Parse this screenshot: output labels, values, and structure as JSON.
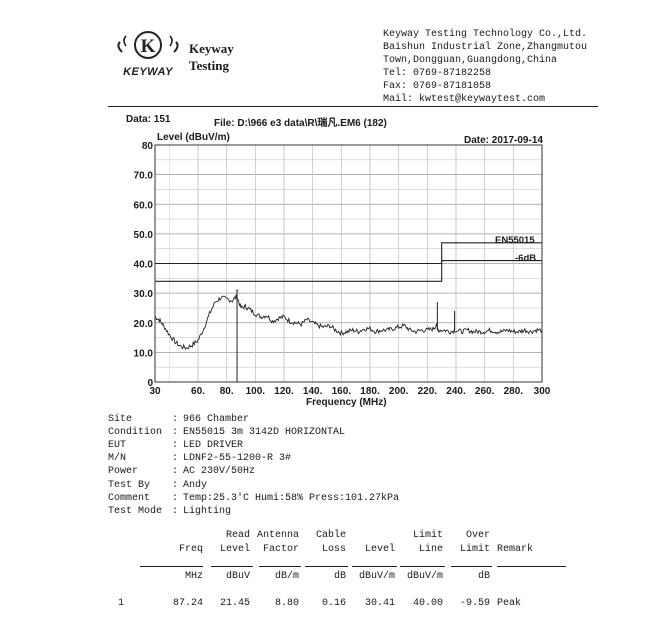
{
  "header": {
    "logo_mark": "K",
    "logo_word": "KEYWAY",
    "brand_line1": "Keyway",
    "brand_line2": "Testing",
    "company": "Keyway Testing Technology Co.,Ltd.",
    "address1": "Baishun Industrial Zone,Zhangmutou",
    "address2": "Town,Dongguan,Guangdong,China",
    "tel": "Tel: 0769-87182258",
    "fax": "Fax: 0769-87181058",
    "mail": "Mail: kwtest@keywaytest.com"
  },
  "plot_header": {
    "data": "Data: 151",
    "file": "File: D:\\966 e3 data\\R\\瑞凡.EM6  (182)",
    "date": "Date: 2017-09-14"
  },
  "chart_data": {
    "type": "line",
    "ylabel": "Level (dBuV/m)",
    "xlabel": "Frequency (MHz)",
    "xlim": [
      30,
      300
    ],
    "ylim": [
      0,
      80
    ],
    "x_ticks": [
      30,
      60,
      80,
      100,
      120,
      140,
      160,
      180,
      200,
      220,
      240,
      260,
      280,
      300
    ],
    "x_tick_labels": [
      "30",
      "60.",
      "80.",
      "100.",
      "120.",
      "140.",
      "160.",
      "180.",
      "200.",
      "220.",
      "240.",
      "260.",
      "280.",
      "300"
    ],
    "y_ticks": [
      0,
      10,
      20,
      30,
      40,
      50,
      60,
      70,
      80
    ],
    "y_tick_labels": [
      "0",
      "10.0",
      "20.0",
      "30.0",
      "40.0",
      "50.0",
      "60.0",
      "70.0",
      "80"
    ],
    "grid": true,
    "limit_line": {
      "label": "EN55015",
      "x": [
        30,
        230,
        230,
        300
      ],
      "y": [
        40,
        40,
        47,
        47
      ]
    },
    "margin_line": {
      "label": "-6dB",
      "x": [
        30,
        230,
        230,
        300
      ],
      "y": [
        34,
        34,
        41,
        41
      ]
    },
    "series": [
      {
        "x": [
          30,
          33,
          36,
          40,
          44,
          48,
          52,
          56,
          60,
          64,
          68,
          72,
          76,
          80,
          84,
          87,
          90,
          93,
          96,
          100,
          104,
          108,
          112,
          116,
          120,
          124,
          128,
          132,
          136,
          140,
          144,
          148,
          152,
          156,
          160,
          164,
          168,
          172,
          176,
          180,
          184,
          188,
          192,
          196,
          200,
          204,
          208,
          212,
          216,
          220,
          224,
          226,
          228,
          232,
          236,
          240,
          244,
          248,
          252,
          256,
          260,
          264,
          268,
          272,
          276,
          280,
          284,
          288,
          292,
          296,
          300
        ],
        "y": [
          22,
          21,
          19,
          16,
          13.5,
          12,
          11.5,
          12.5,
          14,
          18,
          23,
          27,
          28.5,
          28,
          27.5,
          29,
          25,
          25.5,
          24.5,
          23,
          22,
          22.5,
          20.5,
          21.5,
          22,
          20.5,
          20,
          19.5,
          21,
          20,
          19,
          18.5,
          19,
          17.5,
          16.5,
          17,
          17.5,
          17,
          18,
          18,
          17,
          17.5,
          17.5,
          18,
          18.5,
          19,
          17.5,
          17,
          17.5,
          17.5,
          18,
          19,
          17.5,
          17.5,
          17,
          17.5,
          17,
          17.5,
          17,
          17,
          17,
          17.5,
          17,
          17,
          17.5,
          17,
          17,
          17.5,
          17,
          17.5,
          17.5
        ]
      }
    ],
    "marker": {
      "x": 87.24,
      "y": 30.41
    },
    "spikes": [
      {
        "x": 227,
        "y": 27
      },
      {
        "x": 239,
        "y": 24
      }
    ]
  },
  "meta": [
    {
      "key": "Site",
      "sep": ":",
      "value": "966 Chamber"
    },
    {
      "key": "Condition",
      "sep": ":",
      "value": "EN55015 3m 3142D HORIZONTAL"
    },
    {
      "key": "EUT",
      "sep": ":",
      "value": "LED DRIVER"
    },
    {
      "key": "M/N",
      "sep": ":",
      "value": "LDNF2-55-1200-R     3#"
    },
    {
      "key": "Power",
      "sep": ":",
      "value": "AC  230V/50Hz"
    },
    {
      "key": "Test By",
      "sep": ":",
      "value": "Andy"
    },
    {
      "key": "Comment",
      "sep": ":",
      "value": "Temp:25.3'C    Humi:58%    Press:101.27kPa"
    },
    {
      "key": "Test Mode",
      "sep": ":",
      "value": "Lighting"
    }
  ],
  "table": {
    "headers_top": [
      "",
      "Read",
      "Antenna",
      "Cable",
      "",
      "Limit",
      "Over",
      ""
    ],
    "headers_mid": [
      "Freq",
      "Level",
      "Factor",
      "Loss",
      "Level",
      "Line",
      "Limit",
      "Remark"
    ],
    "units": [
      "MHz",
      "dBuV",
      "dB/m",
      "dB",
      "dBuV/m",
      "dBuV/m",
      "dB",
      ""
    ],
    "rows": [
      {
        "no": "1",
        "cells": [
          "87.24",
          "21.45",
          "8.80",
          "0.16",
          "30.41",
          "40.00",
          "-9.59",
          "Peak"
        ]
      }
    ]
  }
}
